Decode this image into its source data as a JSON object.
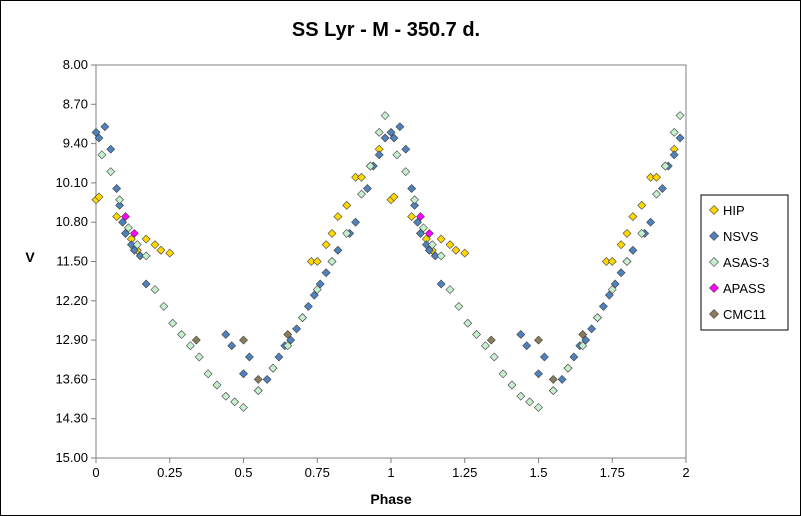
{
  "chart_data": {
    "type": "scatter",
    "title": "SS Lyr - M - 350.7 d.",
    "xlabel": "Phase",
    "ylabel": "V",
    "xlim": [
      0,
      2
    ],
    "ylim": [
      8.0,
      15.0
    ],
    "y_inverted": true,
    "x_ticks": [
      "0",
      "0.25",
      "0.5",
      "0.75",
      "1",
      "1.25",
      "1.5",
      "1.75",
      "2"
    ],
    "y_ticks": [
      "8.00",
      "8.70",
      "9.40",
      "10.10",
      "10.80",
      "11.50",
      "12.20",
      "12.90",
      "13.60",
      "14.30",
      "15.00"
    ],
    "grid": false,
    "legend_position": "right",
    "series": [
      {
        "name": "HIP",
        "color": "#ffd700",
        "x": [
          0.0,
          0.01,
          0.07,
          0.1,
          0.12,
          0.14,
          0.17,
          0.2,
          0.22,
          0.25,
          0.73,
          0.75,
          0.78,
          0.8,
          0.82,
          0.85,
          0.88,
          0.9,
          0.93,
          0.96,
          1.0,
          1.01,
          1.07,
          1.1,
          1.12,
          1.14,
          1.17,
          1.2,
          1.22,
          1.25,
          1.73,
          1.75,
          1.78,
          1.8,
          1.82,
          1.85,
          1.88,
          1.9,
          1.93,
          1.96
        ],
        "y": [
          10.4,
          10.35,
          10.7,
          11.0,
          11.1,
          11.3,
          11.1,
          11.2,
          11.3,
          11.35,
          11.5,
          11.5,
          11.2,
          11.0,
          10.7,
          10.5,
          10.0,
          10.0,
          9.8,
          9.5,
          10.4,
          10.35,
          10.7,
          11.0,
          11.1,
          11.3,
          11.1,
          11.2,
          11.3,
          11.35,
          11.5,
          11.5,
          11.2,
          11.0,
          10.7,
          10.5,
          10.0,
          10.0,
          9.8,
          9.5
        ]
      },
      {
        "name": "NSVS",
        "color": "#4f81bd",
        "x": [
          0.0,
          0.01,
          0.03,
          0.05,
          0.07,
          0.08,
          0.09,
          0.1,
          0.12,
          0.13,
          0.15,
          0.17,
          0.44,
          0.46,
          0.5,
          0.52,
          0.55,
          0.58,
          0.6,
          0.62,
          0.64,
          0.66,
          0.68,
          0.7,
          0.72,
          0.74,
          0.76,
          0.78,
          0.8,
          0.82,
          0.86,
          0.88,
          0.92,
          0.94,
          0.96,
          0.98,
          1.0,
          1.01,
          1.03,
          1.05,
          1.07,
          1.08,
          1.09,
          1.1,
          1.12,
          1.13,
          1.15,
          1.17,
          1.44,
          1.46,
          1.5,
          1.52,
          1.55,
          1.58,
          1.6,
          1.62,
          1.64,
          1.66,
          1.68,
          1.7,
          1.72,
          1.74,
          1.76,
          1.78,
          1.8,
          1.82,
          1.86,
          1.88,
          1.92,
          1.94,
          1.96,
          1.98
        ],
        "y": [
          9.2,
          9.3,
          9.1,
          9.5,
          10.2,
          10.5,
          10.8,
          11.0,
          11.2,
          11.3,
          11.4,
          11.9,
          12.8,
          13.0,
          13.5,
          13.2,
          13.8,
          13.6,
          13.4,
          13.2,
          13.0,
          12.9,
          12.7,
          12.5,
          12.3,
          12.1,
          11.9,
          11.7,
          11.5,
          11.3,
          11.0,
          10.8,
          10.2,
          9.8,
          9.6,
          9.3,
          9.2,
          9.3,
          9.1,
          9.5,
          10.2,
          10.5,
          10.8,
          11.0,
          11.2,
          11.3,
          11.4,
          11.9,
          12.8,
          13.0,
          13.5,
          13.2,
          13.8,
          13.6,
          13.4,
          13.2,
          13.0,
          12.9,
          12.7,
          12.5,
          12.3,
          12.1,
          11.9,
          11.7,
          11.5,
          11.3,
          11.0,
          10.8,
          10.2,
          9.8,
          9.6,
          9.3
        ]
      },
      {
        "name": "ASAS-3",
        "color": "#c6efce",
        "x": [
          0.02,
          0.05,
          0.08,
          0.11,
          0.14,
          0.17,
          0.2,
          0.23,
          0.26,
          0.29,
          0.32,
          0.35,
          0.38,
          0.41,
          0.44,
          0.47,
          0.5,
          0.55,
          0.6,
          0.65,
          0.7,
          0.75,
          0.8,
          0.85,
          0.9,
          0.93,
          0.96,
          0.98,
          1.02,
          1.05,
          1.08,
          1.11,
          1.14,
          1.17,
          1.2,
          1.23,
          1.26,
          1.29,
          1.32,
          1.35,
          1.38,
          1.41,
          1.44,
          1.47,
          1.5,
          1.55,
          1.6,
          1.65,
          1.7,
          1.75,
          1.8,
          1.85,
          1.9,
          1.93,
          1.96,
          1.98
        ],
        "y": [
          9.6,
          9.9,
          10.4,
          10.9,
          11.2,
          11.4,
          12.0,
          12.3,
          12.6,
          12.8,
          13.0,
          13.2,
          13.5,
          13.7,
          13.9,
          14.0,
          14.1,
          13.8,
          13.4,
          13.0,
          12.5,
          12.0,
          11.5,
          11.0,
          10.3,
          9.8,
          9.2,
          8.9,
          9.6,
          9.9,
          10.4,
          10.9,
          11.2,
          11.4,
          12.0,
          12.3,
          12.6,
          12.8,
          13.0,
          13.2,
          13.5,
          13.7,
          13.9,
          14.0,
          14.1,
          13.8,
          13.4,
          13.0,
          12.5,
          12.0,
          11.5,
          11.0,
          10.3,
          9.8,
          9.2,
          8.9
        ]
      },
      {
        "name": "APASS",
        "color": "#ff00ff",
        "x": [
          0.1,
          0.13,
          1.1,
          1.13
        ],
        "y": [
          10.7,
          11.0,
          10.7,
          11.0
        ]
      },
      {
        "name": "CMC11",
        "color": "#8b7d5b",
        "x": [
          0.34,
          0.5,
          0.55,
          0.65,
          1.34,
          1.5,
          1.55,
          1.65
        ],
        "y": [
          12.9,
          12.9,
          13.6,
          12.8,
          12.9,
          12.9,
          13.6,
          12.8
        ]
      }
    ]
  }
}
